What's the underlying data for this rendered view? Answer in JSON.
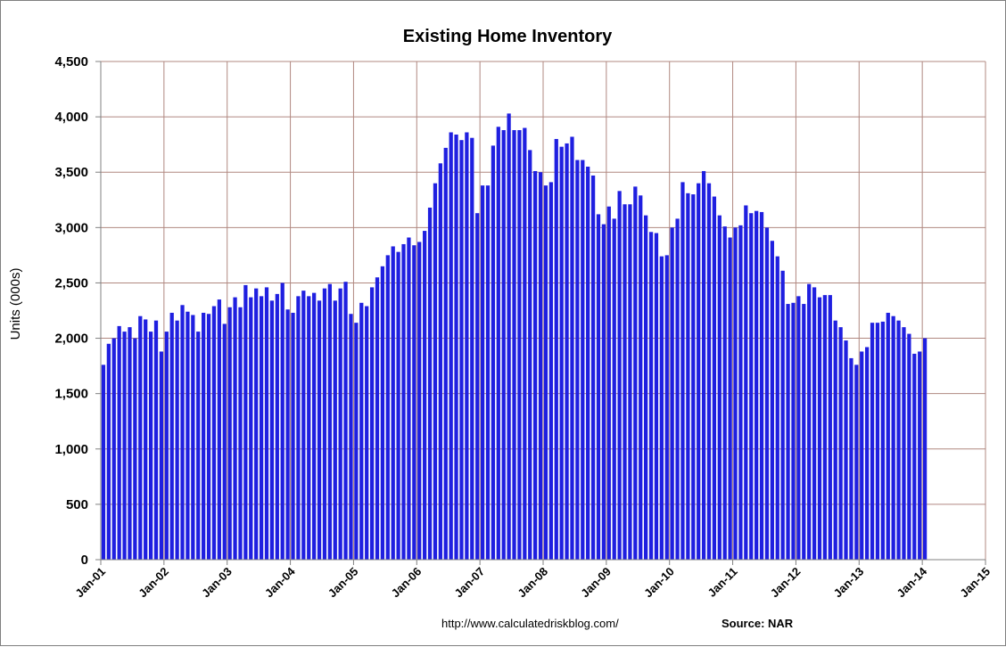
{
  "chart_data": {
    "type": "bar",
    "title": "Existing Home Inventory",
    "ylabel": "Units (000s)",
    "xlabel": "",
    "ylim": [
      0,
      4500
    ],
    "yticks": [
      0,
      500,
      1000,
      1500,
      2000,
      2500,
      3000,
      3500,
      4000,
      4500
    ],
    "ytick_labels": [
      "0",
      "500",
      "1,000",
      "1,500",
      "2,000",
      "2,500",
      "3,000",
      "3,500",
      "4,000",
      "4,500"
    ],
    "xticks": [
      "Jan-01",
      "Jan-02",
      "Jan-03",
      "Jan-04",
      "Jan-05",
      "Jan-06",
      "Jan-07",
      "Jan-08",
      "Jan-09",
      "Jan-10",
      "Jan-11",
      "Jan-12",
      "Jan-13",
      "Jan-14",
      "Jan-15"
    ],
    "x_start": "Jan-01",
    "grid": true,
    "legend": "none",
    "bar_color": "#1f1fe0",
    "series": [
      {
        "values": [
          1760,
          1950,
          2000,
          2110,
          2060,
          2100,
          2000,
          2200,
          2170,
          2060,
          2160,
          1880,
          2060,
          2230,
          2160,
          2300,
          2240,
          2210,
          2060,
          2230,
          2220,
          2290,
          2350,
          2130,
          2280,
          2370,
          2280,
          2480,
          2370,
          2450,
          2380,
          2460,
          2340,
          2400,
          2500,
          2260,
          2230,
          2380,
          2430,
          2380,
          2410,
          2340,
          2450,
          2490,
          2340,
          2450,
          2510,
          2220,
          2140,
          2320,
          2290,
          2460,
          2550,
          2650,
          2750,
          2830,
          2780,
          2850,
          2910,
          2840,
          2870,
          2970,
          3180,
          3400,
          3580,
          3720,
          3860,
          3840,
          3790,
          3860,
          3810,
          3130,
          3380,
          3380,
          3740,
          3910,
          3880,
          4030,
          3880,
          3880,
          3900,
          3700,
          3510,
          3500,
          3380,
          3410,
          3800,
          3730,
          3760,
          3820,
          3610,
          3610,
          3550,
          3470,
          3120,
          3030,
          3190,
          3080,
          3330,
          3210,
          3210,
          3370,
          3290,
          3110,
          2960,
          2950,
          2740,
          2750,
          3000,
          3080,
          3410,
          3310,
          3300,
          3400,
          3510,
          3400,
          3280,
          3110,
          3010,
          2910,
          3000,
          3020,
          3200,
          3130,
          3150,
          3140,
          3000,
          2880,
          2740,
          2610,
          2310,
          2320,
          2380,
          2310,
          2490,
          2460,
          2370,
          2390,
          2390,
          2160,
          2100,
          1980,
          1820,
          1760,
          1880,
          1920,
          2140,
          2140,
          2150,
          2230,
          2200,
          2160,
          2100,
          2040,
          1860,
          1880,
          2000
        ]
      }
    ]
  },
  "footer": {
    "url": "http://www.calculatedriskblog.com/",
    "source": "Source: NAR"
  }
}
